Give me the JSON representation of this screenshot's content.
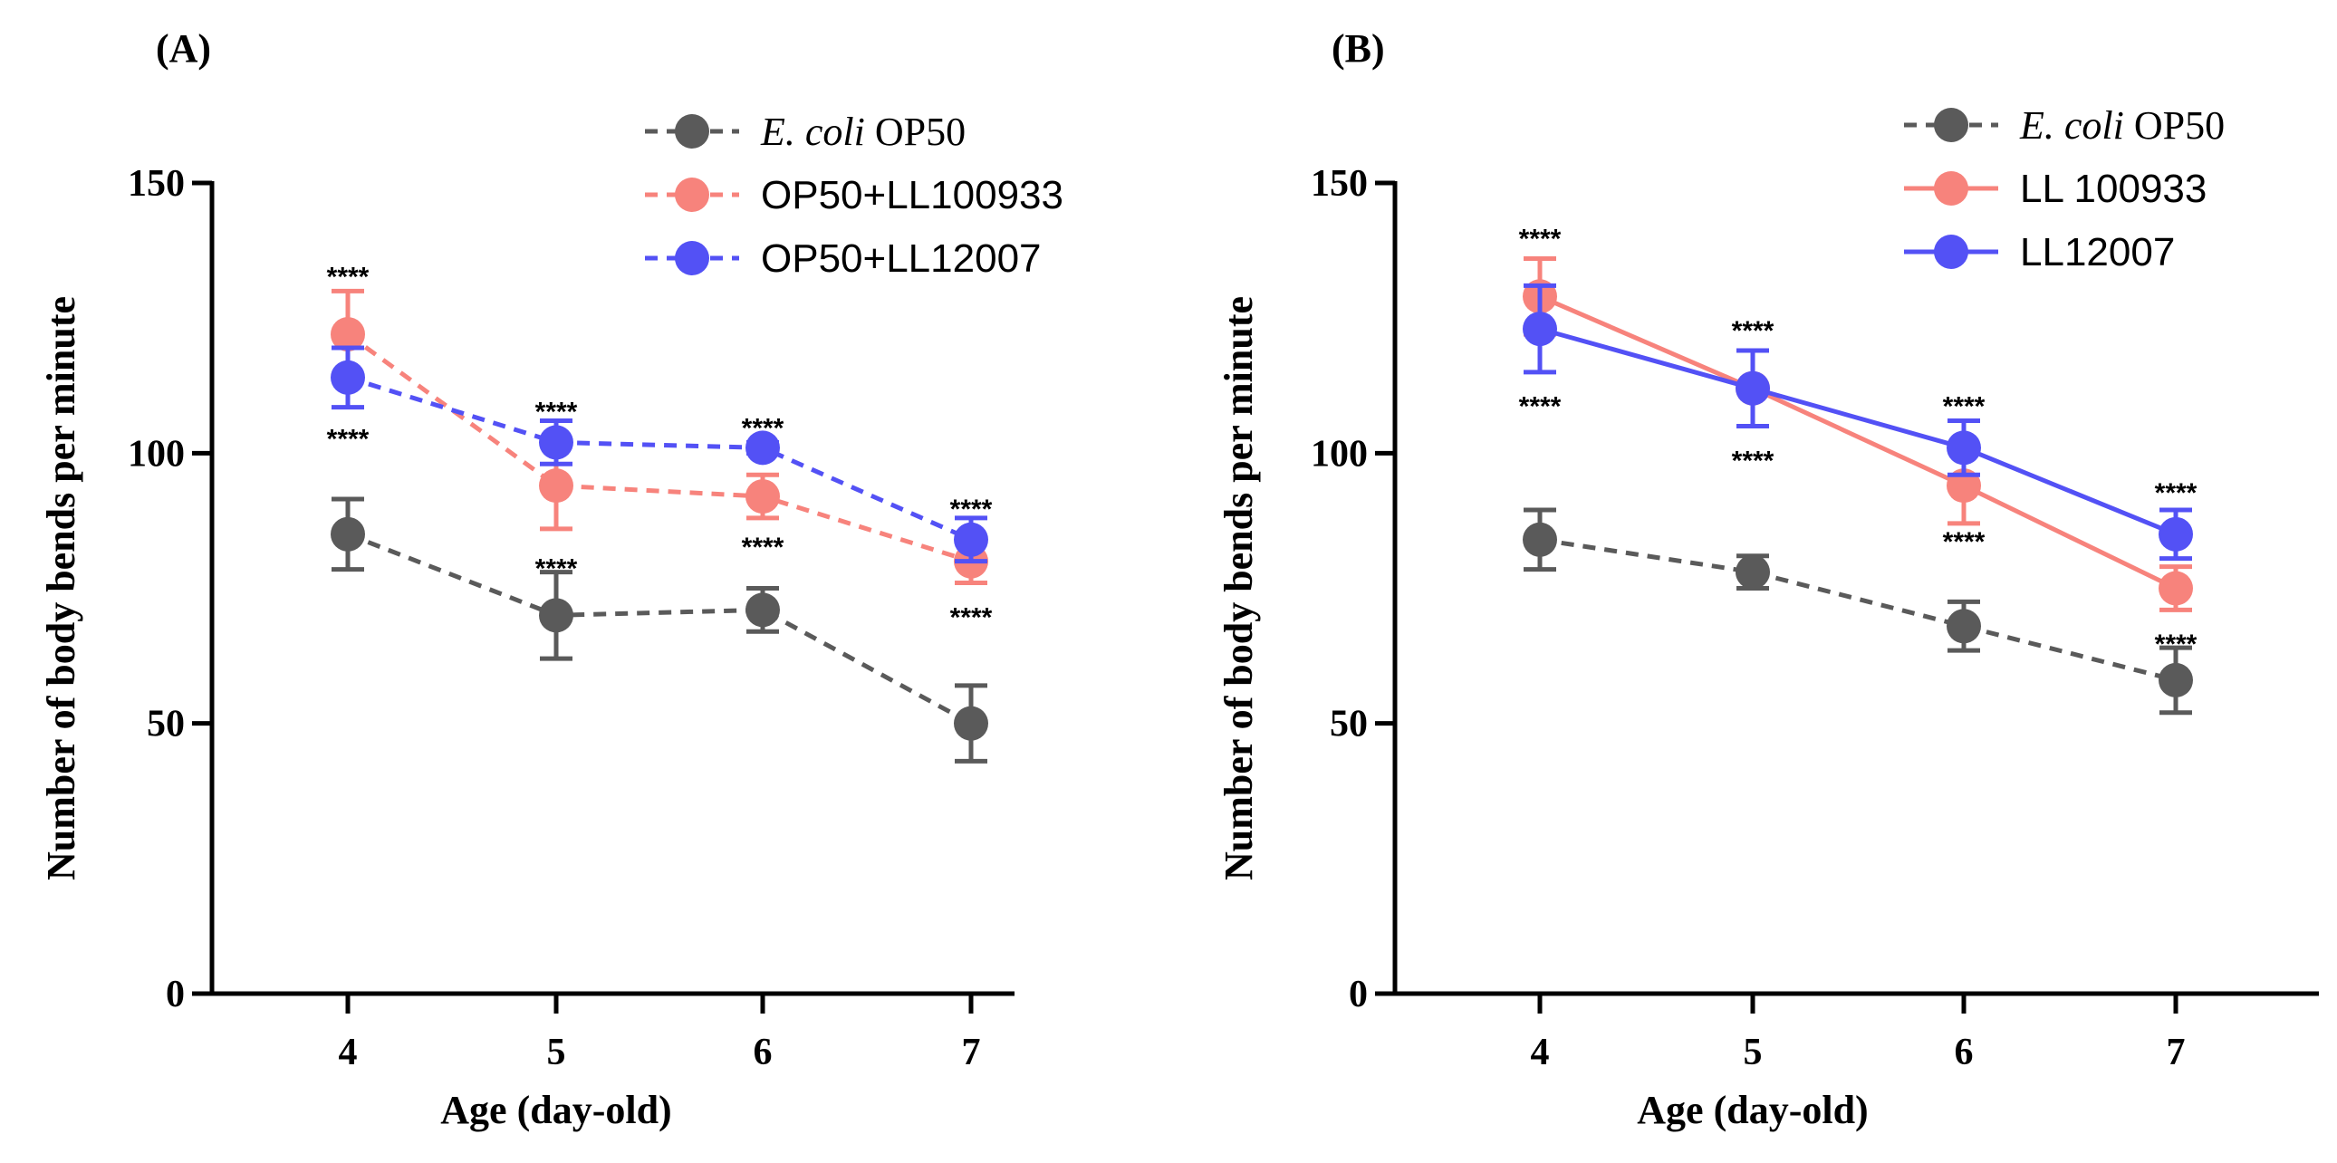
{
  "chart_data": [
    {
      "panel": "(A)",
      "type": "line",
      "xlabel": "Age (day-old)",
      "ylabel": "Number of body bends per minute",
      "categories": [
        "4",
        "5",
        "6",
        "7"
      ],
      "ylim": [
        0,
        150
      ],
      "yticks": [
        "0",
        "50",
        "100",
        "150"
      ],
      "legend_position": "top-right",
      "series": [
        {
          "name_italic": "E. coli",
          "name_rest": " OP50",
          "color": "#5a5a5a",
          "style": "dashed",
          "values": [
            85,
            70,
            71,
            50
          ],
          "err": [
            6.5,
            8,
            4,
            7
          ]
        },
        {
          "name_italic": "",
          "name_rest": "OP50+LL100933",
          "color": "#f7837c",
          "style": "dashed",
          "values": [
            122,
            94,
            92,
            80
          ],
          "err": [
            8,
            8,
            4,
            4
          ]
        },
        {
          "name_italic": "",
          "name_rest": "OP50+LL12007",
          "color": "#5351f5",
          "style": "dashed",
          "values": [
            114,
            102,
            101,
            84
          ],
          "err": [
            5.5,
            4,
            1,
            4
          ]
        }
      ],
      "annotations": [
        {
          "x": "4",
          "y": 133,
          "text": "****"
        },
        {
          "x": "4",
          "y": 103,
          "text": "****"
        },
        {
          "x": "5",
          "y": 108,
          "text": "****"
        },
        {
          "x": "5",
          "y": 79,
          "text": "****"
        },
        {
          "x": "6",
          "y": 105,
          "text": "****"
        },
        {
          "x": "6",
          "y": 83,
          "text": "****"
        },
        {
          "x": "7",
          "y": 90,
          "text": "****"
        },
        {
          "x": "7",
          "y": 70,
          "text": "****"
        }
      ]
    },
    {
      "panel": "(B)",
      "type": "line",
      "xlabel": "Age (day-old)",
      "ylabel": "Number of body bends per minute",
      "categories": [
        "4",
        "5",
        "6",
        "7"
      ],
      "ylim": [
        0,
        150
      ],
      "yticks": [
        "0",
        "50",
        "100",
        "150"
      ],
      "legend_position": "top-right",
      "series": [
        {
          "name_italic": "E. coli",
          "name_rest": " OP50",
          "color": "#5a5a5a",
          "style": "dashed",
          "values": [
            84,
            78,
            68,
            58
          ],
          "err": [
            5.5,
            3,
            4.5,
            6
          ]
        },
        {
          "name_italic": "",
          "name_rest": "LL 100933",
          "color": "#f7837c",
          "style": "solid",
          "values": [
            129,
            112,
            94,
            75
          ],
          "err": [
            7,
            7,
            7,
            4
          ]
        },
        {
          "name_italic": "",
          "name_rest": "LL12007",
          "color": "#5351f5",
          "style": "solid",
          "values": [
            123,
            112,
            101,
            85
          ],
          "err": [
            8,
            7,
            5,
            4.5
          ]
        }
      ],
      "annotations": [
        {
          "x": "4",
          "y": 140,
          "text": "****"
        },
        {
          "x": "4",
          "y": 109,
          "text": "****"
        },
        {
          "x": "5",
          "y": 123,
          "text": "****"
        },
        {
          "x": "5",
          "y": 99,
          "text": "****"
        },
        {
          "x": "6",
          "y": 109,
          "text": "****"
        },
        {
          "x": "6",
          "y": 84,
          "text": "****"
        },
        {
          "x": "7",
          "y": 93,
          "text": "****"
        },
        {
          "x": "7",
          "y": 65,
          "text": "****"
        }
      ]
    }
  ]
}
